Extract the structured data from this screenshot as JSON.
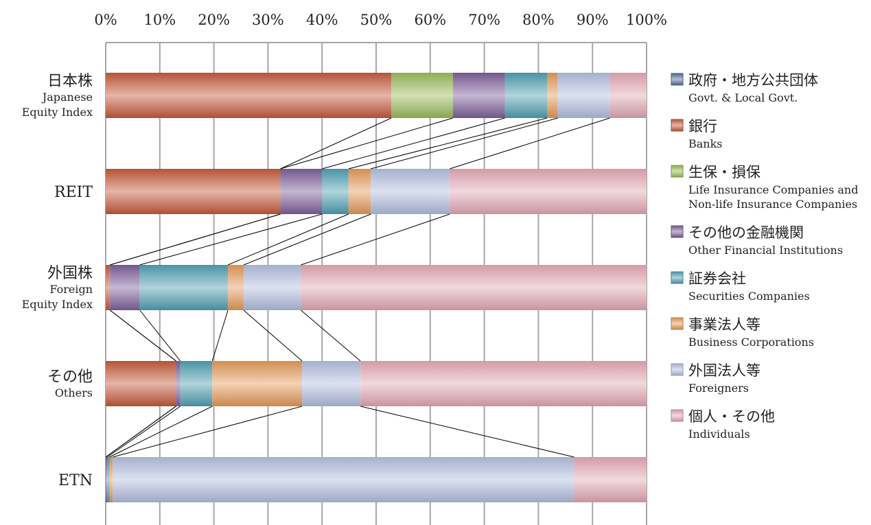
{
  "chart_data": {
    "type": "bar",
    "orientation": "horizontal-stacked-100",
    "axis": {
      "ticks": [
        "0%",
        "10%",
        "20%",
        "30%",
        "40%",
        "50%",
        "60%",
        "70%",
        "80%",
        "90%",
        "100%"
      ],
      "xlim": [
        0,
        100
      ],
      "position": "top",
      "grid": true
    },
    "categories": [
      {
        "label": "日本株",
        "sub": [
          "Japanese",
          "Equity Index"
        ]
      },
      {
        "label": "REIT",
        "sub": []
      },
      {
        "label": "外国株",
        "sub": [
          "Foreign",
          "Equity Index"
        ]
      },
      {
        "label": "その他",
        "sub": [
          "Others"
        ]
      },
      {
        "label": "ETN",
        "sub": []
      }
    ],
    "series": [
      {
        "name_jp": "政府・地方公共団体",
        "name_en": [
          "Govt. & Local Govt."
        ],
        "color": "#5b6f97",
        "values": [
          0.0,
          0.0,
          0.0,
          0.0,
          0.0
        ]
      },
      {
        "name_jp": "銀行",
        "name_en": [
          "Banks"
        ],
        "color": "#c55a3c",
        "values": [
          52.8,
          32.3,
          0.8,
          13.0,
          0.0
        ]
      },
      {
        "name_jp": "生保・損保",
        "name_en": [
          "Life Insurance Companies and",
          "Non-life Insurance Companies"
        ],
        "color": "#9bbb59",
        "values": [
          11.4,
          0.0,
          0.0,
          0.0,
          0.0
        ]
      },
      {
        "name_jp": "その他の金融機関",
        "name_en": [
          "Other Financial Institutions"
        ],
        "color": "#7d5f9a",
        "values": [
          9.6,
          7.7,
          5.5,
          0.8,
          0.3
        ]
      },
      {
        "name_jp": "証券会社",
        "name_en": [
          "Securities Companies"
        ],
        "color": "#4fa0b2",
        "values": [
          7.8,
          4.9,
          16.3,
          5.9,
          0.4
        ]
      },
      {
        "name_jp": "事業法人等",
        "name_en": [
          "Business Corporations"
        ],
        "color": "#e59a5a",
        "values": [
          2.0,
          4.1,
          2.9,
          16.6,
          0.6
        ]
      },
      {
        "name_jp": "外国法人等",
        "name_en": [
          "Foreigners"
        ],
        "color": "#b4bfdf",
        "values": [
          9.6,
          14.6,
          10.6,
          10.8,
          85.3
        ]
      },
      {
        "name_jp": "個人・その他",
        "name_en": [
          "Individuals"
        ],
        "color": "#e3a8b5",
        "values": [
          6.8,
          36.4,
          63.9,
          52.9,
          13.4
        ]
      }
    ],
    "legend": {
      "position": "right"
    }
  }
}
